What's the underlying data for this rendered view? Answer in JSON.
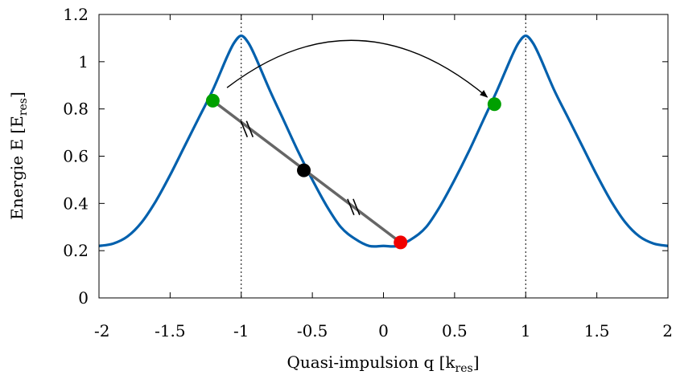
{
  "chart_data": {
    "type": "line",
    "title": "",
    "xlabel": "Quasi-impulsion q [k",
    "xlabel_sub": "res",
    "xlabel_end": "]",
    "ylabel": "Energie E [E",
    "ylabel_sub": "res",
    "ylabel_end": "]",
    "xlim": [
      -2,
      2
    ],
    "ylim": [
      0,
      1.2
    ],
    "xticks": [
      -2,
      -1.5,
      -1,
      -0.5,
      0,
      0.5,
      1,
      1.5,
      2
    ],
    "xtick_labels": [
      "-2",
      "-1.5",
      "-1",
      "-0.5",
      "0",
      "0.5",
      "1",
      "1.5",
      "2"
    ],
    "yticks": [
      0,
      0.2,
      0.4,
      0.6,
      0.8,
      1,
      1.2
    ],
    "ytick_labels": [
      "0",
      "0.2",
      "0.4",
      "0.6",
      "0.8",
      "1",
      "1.2"
    ],
    "grid": false,
    "colors": {
      "band": "#0060AD",
      "chord": "#666666",
      "green": "#00A000",
      "black": "#000000",
      "red": "#F00000",
      "vline": "#000000"
    },
    "series": [
      {
        "x": [
          -2,
          -1.9,
          -1.8,
          -1.7,
          -1.6,
          -1.5,
          -1.4,
          -1.3,
          -1.2,
          -1.1,
          -1.05,
          -1,
          -0.95,
          -0.9,
          -0.8,
          -0.7,
          -0.6,
          -0.5,
          -0.4,
          -0.3,
          -0.2,
          -0.1,
          0,
          0.1,
          0.2,
          0.3,
          0.4,
          0.5,
          0.6,
          0.7,
          0.8,
          0.9,
          0.95,
          1,
          1.05,
          1.1,
          1.2,
          1.3,
          1.4,
          1.5,
          1.6,
          1.7,
          1.8,
          1.9,
          2
        ],
        "y": [
          0.22,
          0.23,
          0.26,
          0.32,
          0.41,
          0.52,
          0.64,
          0.76,
          0.88,
          1.02,
          1.08,
          1.11,
          1.08,
          1.02,
          0.88,
          0.75,
          0.62,
          0.5,
          0.39,
          0.3,
          0.25,
          0.22,
          0.22,
          0.22,
          0.25,
          0.3,
          0.39,
          0.5,
          0.62,
          0.75,
          0.88,
          1.02,
          1.08,
          1.11,
          1.08,
          1.02,
          0.88,
          0.76,
          0.64,
          0.52,
          0.41,
          0.32,
          0.26,
          0.23,
          0.22
        ]
      }
    ],
    "vlines": [
      -1,
      1
    ],
    "chord": {
      "x": [
        -1.2,
        0.12
      ],
      "y": [
        0.835,
        0.235
      ]
    },
    "points": [
      {
        "x": -1.2,
        "y": 0.835,
        "color": "#00A000"
      },
      {
        "x": -0.56,
        "y": 0.54,
        "color": "#000000"
      },
      {
        "x": 0.12,
        "y": 0.235,
        "color": "#F00000"
      },
      {
        "x": 0.78,
        "y": 0.82,
        "color": "#00A000"
      }
    ],
    "arrow": {
      "from": {
        "x": -1.1,
        "y": 0.89
      },
      "to": {
        "x": 0.73,
        "y": 0.85
      },
      "apex_y": 1.09
    },
    "break_marks": [
      {
        "x": -0.96,
        "y": 0.715
      },
      {
        "x": -0.21,
        "y": 0.385
      }
    ]
  }
}
